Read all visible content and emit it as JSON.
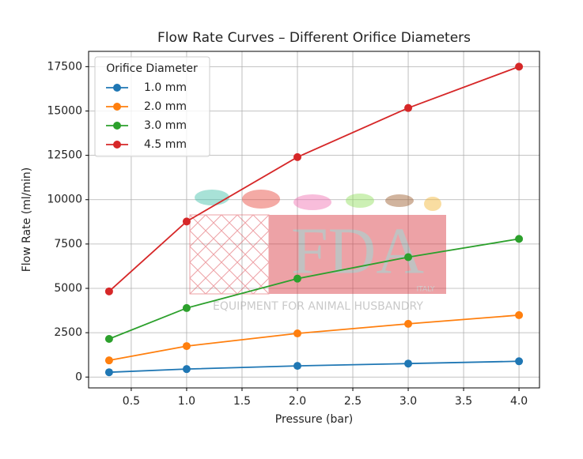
{
  "chart_data": {
    "type": "line",
    "title": "Flow Rate Curves – Different Orifice Diameters",
    "x_label": "Pressure (bar)",
    "y_label": "Flow Rate (ml/min)",
    "x": [
      0.3,
      1,
      2,
      3,
      4
    ],
    "series": [
      {
        "name": "1.0 mm",
        "color": "#1f77b4",
        "values": [
          270,
          450,
          630,
          760,
          890
        ]
      },
      {
        "name": "2.0 mm",
        "color": "#ff7f0e",
        "values": [
          940,
          1745,
          2460,
          3000,
          3490
        ]
      },
      {
        "name": "3.0 mm",
        "color": "#2ca02c",
        "values": [
          2150,
          3890,
          5550,
          6760,
          7790
        ]
      },
      {
        "name": "4.5 mm",
        "color": "#d62728",
        "values": [
          4830,
          8770,
          12400,
          15170,
          17500
        ]
      }
    ],
    "xlim": [
      0.115,
      4.185
    ],
    "xticks": [
      0.5,
      {
        "value": 1,
        "label": "1.0"
      },
      1.5,
      {
        "value": 2,
        "label": "2.0"
      },
      2.5,
      {
        "value": 3,
        "label": "3.0"
      },
      3.5,
      {
        "value": 4,
        "label": "4.0"
      }
    ],
    "ylim": [
      -612,
      18362
    ],
    "yticks": [
      0,
      2500,
      5000,
      7500,
      10000,
      12500,
      15000,
      17500
    ],
    "grid": true,
    "legend_title": "Orifice Diameter",
    "legend_loc": "upper left",
    "watermark": {
      "brand": "FDA",
      "tagline": "EQUIPMENT FOR ANIMAL HUSBANDRY",
      "country": "ITALY"
    }
  }
}
